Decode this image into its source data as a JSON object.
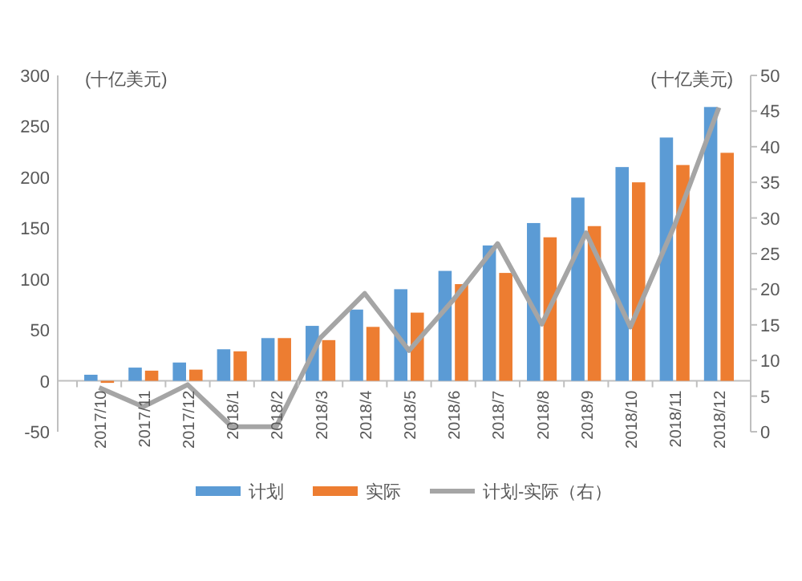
{
  "chart_data": {
    "type": "bar",
    "ylabel": "(十亿美元)",
    "y2label": "(十亿美元)",
    "categories": [
      "2017/10",
      "2017/11",
      "2017/12",
      "2018/1",
      "2018/2",
      "2018/3",
      "2018/4",
      "2018/5",
      "2018/6",
      "2018/7",
      "2018/8",
      "2018/9",
      "2018/10",
      "2018/11",
      "2018/12"
    ],
    "series": [
      {
        "name": "计划",
        "color": "#5b9bd5",
        "values": [
          6,
          13,
          18,
          31,
          42,
          54,
          70,
          90,
          108,
          133,
          155,
          180,
          210,
          239,
          269
        ]
      },
      {
        "name": "实际",
        "color": "#ed7d31",
        "values": [
          -2,
          10,
          11,
          29,
          42,
          40,
          53,
          67,
          95,
          106,
          141,
          152,
          195,
          212,
          224
        ]
      },
      {
        "name": "计划-实际（右）",
        "type": "line",
        "axis": "y2",
        "color": "#a5a5a5",
        "values": [
          6.2,
          3.5,
          6.6,
          0.7,
          0.7,
          13.2,
          19.4,
          11.4,
          18.5,
          26.4,
          15.1,
          27.9,
          14.7,
          29,
          45.5
        ]
      }
    ],
    "ylim": [
      -50,
      300
    ],
    "yticks": [
      -50,
      0,
      50,
      100,
      150,
      200,
      250,
      300
    ],
    "y2lim": [
      0,
      50
    ],
    "y2ticks": [
      0,
      5,
      10,
      15,
      20,
      25,
      30,
      35,
      40,
      45,
      50
    ],
    "legend": "bottom",
    "grid": false
  }
}
